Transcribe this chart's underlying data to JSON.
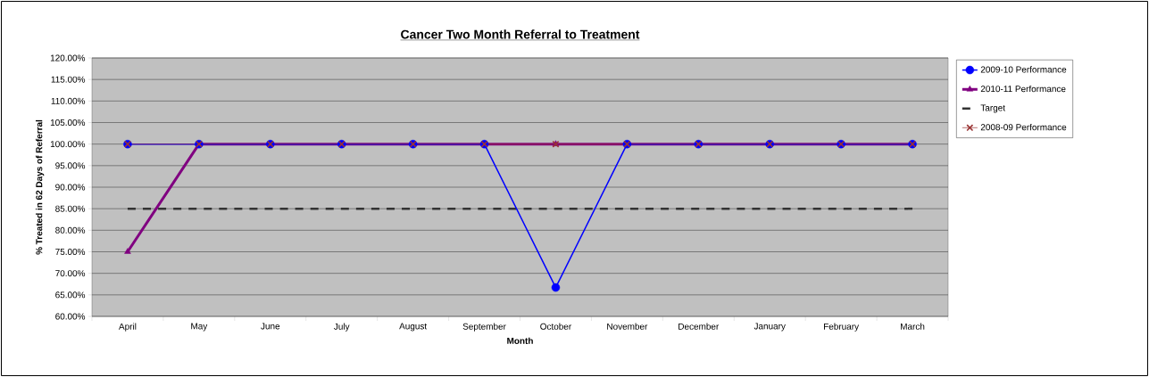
{
  "chart_data": {
    "type": "line",
    "title": "Cancer Two Month Referral to Treatment",
    "xlabel": "Month",
    "ylabel": "% Treated in 62 Days of Referral",
    "categories": [
      "April",
      "May",
      "June",
      "July",
      "August",
      "September",
      "October",
      "November",
      "December",
      "January",
      "February",
      "March"
    ],
    "series": [
      {
        "name": "2009-10 Performance",
        "color": "#0000ff",
        "marker": "circle",
        "line_style": "solid",
        "values": [
          100,
          100,
          100,
          100,
          100,
          100,
          66.7,
          100,
          100,
          100,
          100,
          100
        ]
      },
      {
        "name": "2010-11 Performance",
        "color": "#800080",
        "marker": "triangle",
        "line_style": "solid",
        "values": [
          75,
          100,
          100,
          100,
          100,
          100,
          100,
          100,
          100,
          100,
          100,
          100
        ]
      },
      {
        "name": "Target",
        "color": "#333333",
        "marker": "none",
        "line_style": "dashed",
        "values": [
          85,
          85,
          85,
          85,
          85,
          85,
          85,
          85,
          85,
          85,
          85,
          85
        ]
      },
      {
        "name": "2008-09 Performance",
        "color": "#993333",
        "marker": "cross",
        "line_style": "solid",
        "values": [
          100,
          100,
          100,
          100,
          100,
          100,
          100,
          100,
          100,
          100,
          100,
          100
        ]
      }
    ],
    "ylim": [
      60,
      120
    ],
    "yticks": [
      {
        "value": 60,
        "label": "60.00%"
      },
      {
        "value": 65,
        "label": "65.00%"
      },
      {
        "value": 70,
        "label": "70.00%"
      },
      {
        "value": 75,
        "label": "75.00%"
      },
      {
        "value": 80,
        "label": "80.00%"
      },
      {
        "value": 85,
        "label": "85.00%"
      },
      {
        "value": 90,
        "label": "90.00%"
      },
      {
        "value": 95,
        "label": "95.00%"
      },
      {
        "value": 100,
        "label": "100.00%"
      },
      {
        "value": 105,
        "label": "105.00%"
      },
      {
        "value": 110,
        "label": "110.00%"
      },
      {
        "value": 115,
        "label": "115.00%"
      },
      {
        "value": 120,
        "label": "120.00%"
      }
    ],
    "grid": "y",
    "legend": "right"
  }
}
